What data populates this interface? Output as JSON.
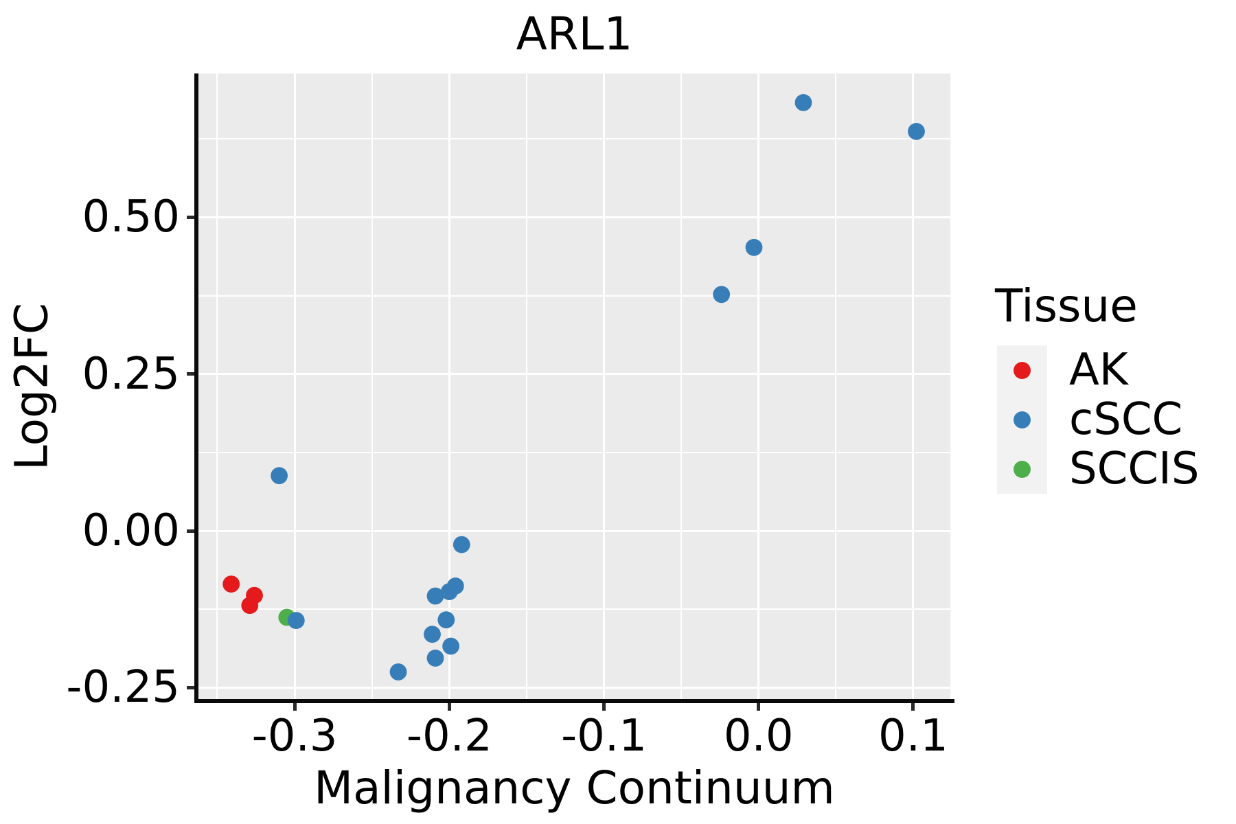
{
  "title": "ARL1",
  "colors": {
    "background": "#ffffff",
    "panel": "#ebebeb",
    "grid": "#ffffff",
    "axis": "#0a0a0a",
    "legend_key": "#f2f2f2",
    "ak_red": "#e41a1c",
    "cscc_blue": "#377eb8",
    "sccis_green": "#4daf4a"
  },
  "legend": {
    "title": "Tissue",
    "items": [
      {
        "label": "AK",
        "color": "#e41a1c"
      },
      {
        "label": "cSCC",
        "color": "#377eb8"
      },
      {
        "label": "SCCIS",
        "color": "#4daf4a"
      }
    ]
  },
  "chart_data": {
    "type": "scatter",
    "title": "ARL1",
    "xlabel": "Malignancy Continuum",
    "ylabel": "Log2FC",
    "xlim": [
      -0.3622,
      0.124
    ],
    "ylim": [
      -0.2683,
      0.7294
    ],
    "grid": true,
    "legend_position": "right",
    "point_radius_px": 12.4,
    "x_ticks": {
      "values": [
        -0.3,
        -0.2,
        -0.1,
        0.0,
        0.1
      ],
      "labels": [
        "-0.3",
        "-0.2",
        "-0.1",
        "0.0",
        "0.1"
      ],
      "minor": [
        -0.35,
        -0.25,
        -0.15,
        -0.05,
        0.05
      ]
    },
    "y_ticks": {
      "values": [
        -0.25,
        0.0,
        0.25,
        0.5
      ],
      "labels": [
        "-0.25",
        "0.00",
        "0.25",
        "0.50"
      ],
      "minor": [
        -0.125,
        0.125,
        0.375,
        0.625
      ]
    },
    "series": [
      {
        "name": "AK",
        "color": "#e41a1c",
        "points": [
          [
            -0.341,
            -0.085
          ],
          [
            -0.326,
            -0.103
          ],
          [
            -0.329,
            -0.119
          ]
        ]
      },
      {
        "name": "SCCIS",
        "color": "#4daf4a",
        "points": [
          [
            -0.305,
            -0.138
          ]
        ]
      },
      {
        "name": "cSCC",
        "color": "#377eb8",
        "points": [
          [
            -0.31,
            0.088
          ],
          [
            -0.299,
            -0.143
          ],
          [
            -0.233,
            -0.225
          ],
          [
            -0.211,
            -0.165
          ],
          [
            -0.209,
            -0.104
          ],
          [
            -0.209,
            -0.203
          ],
          [
            -0.202,
            -0.142
          ],
          [
            -0.2,
            -0.097
          ],
          [
            -0.199,
            -0.184
          ],
          [
            -0.196,
            -0.088
          ],
          [
            -0.192,
            -0.022
          ],
          [
            -0.024,
            0.377
          ],
          [
            -0.003,
            0.452
          ],
          [
            0.029,
            0.683
          ],
          [
            0.102,
            0.637
          ]
        ]
      }
    ]
  }
}
